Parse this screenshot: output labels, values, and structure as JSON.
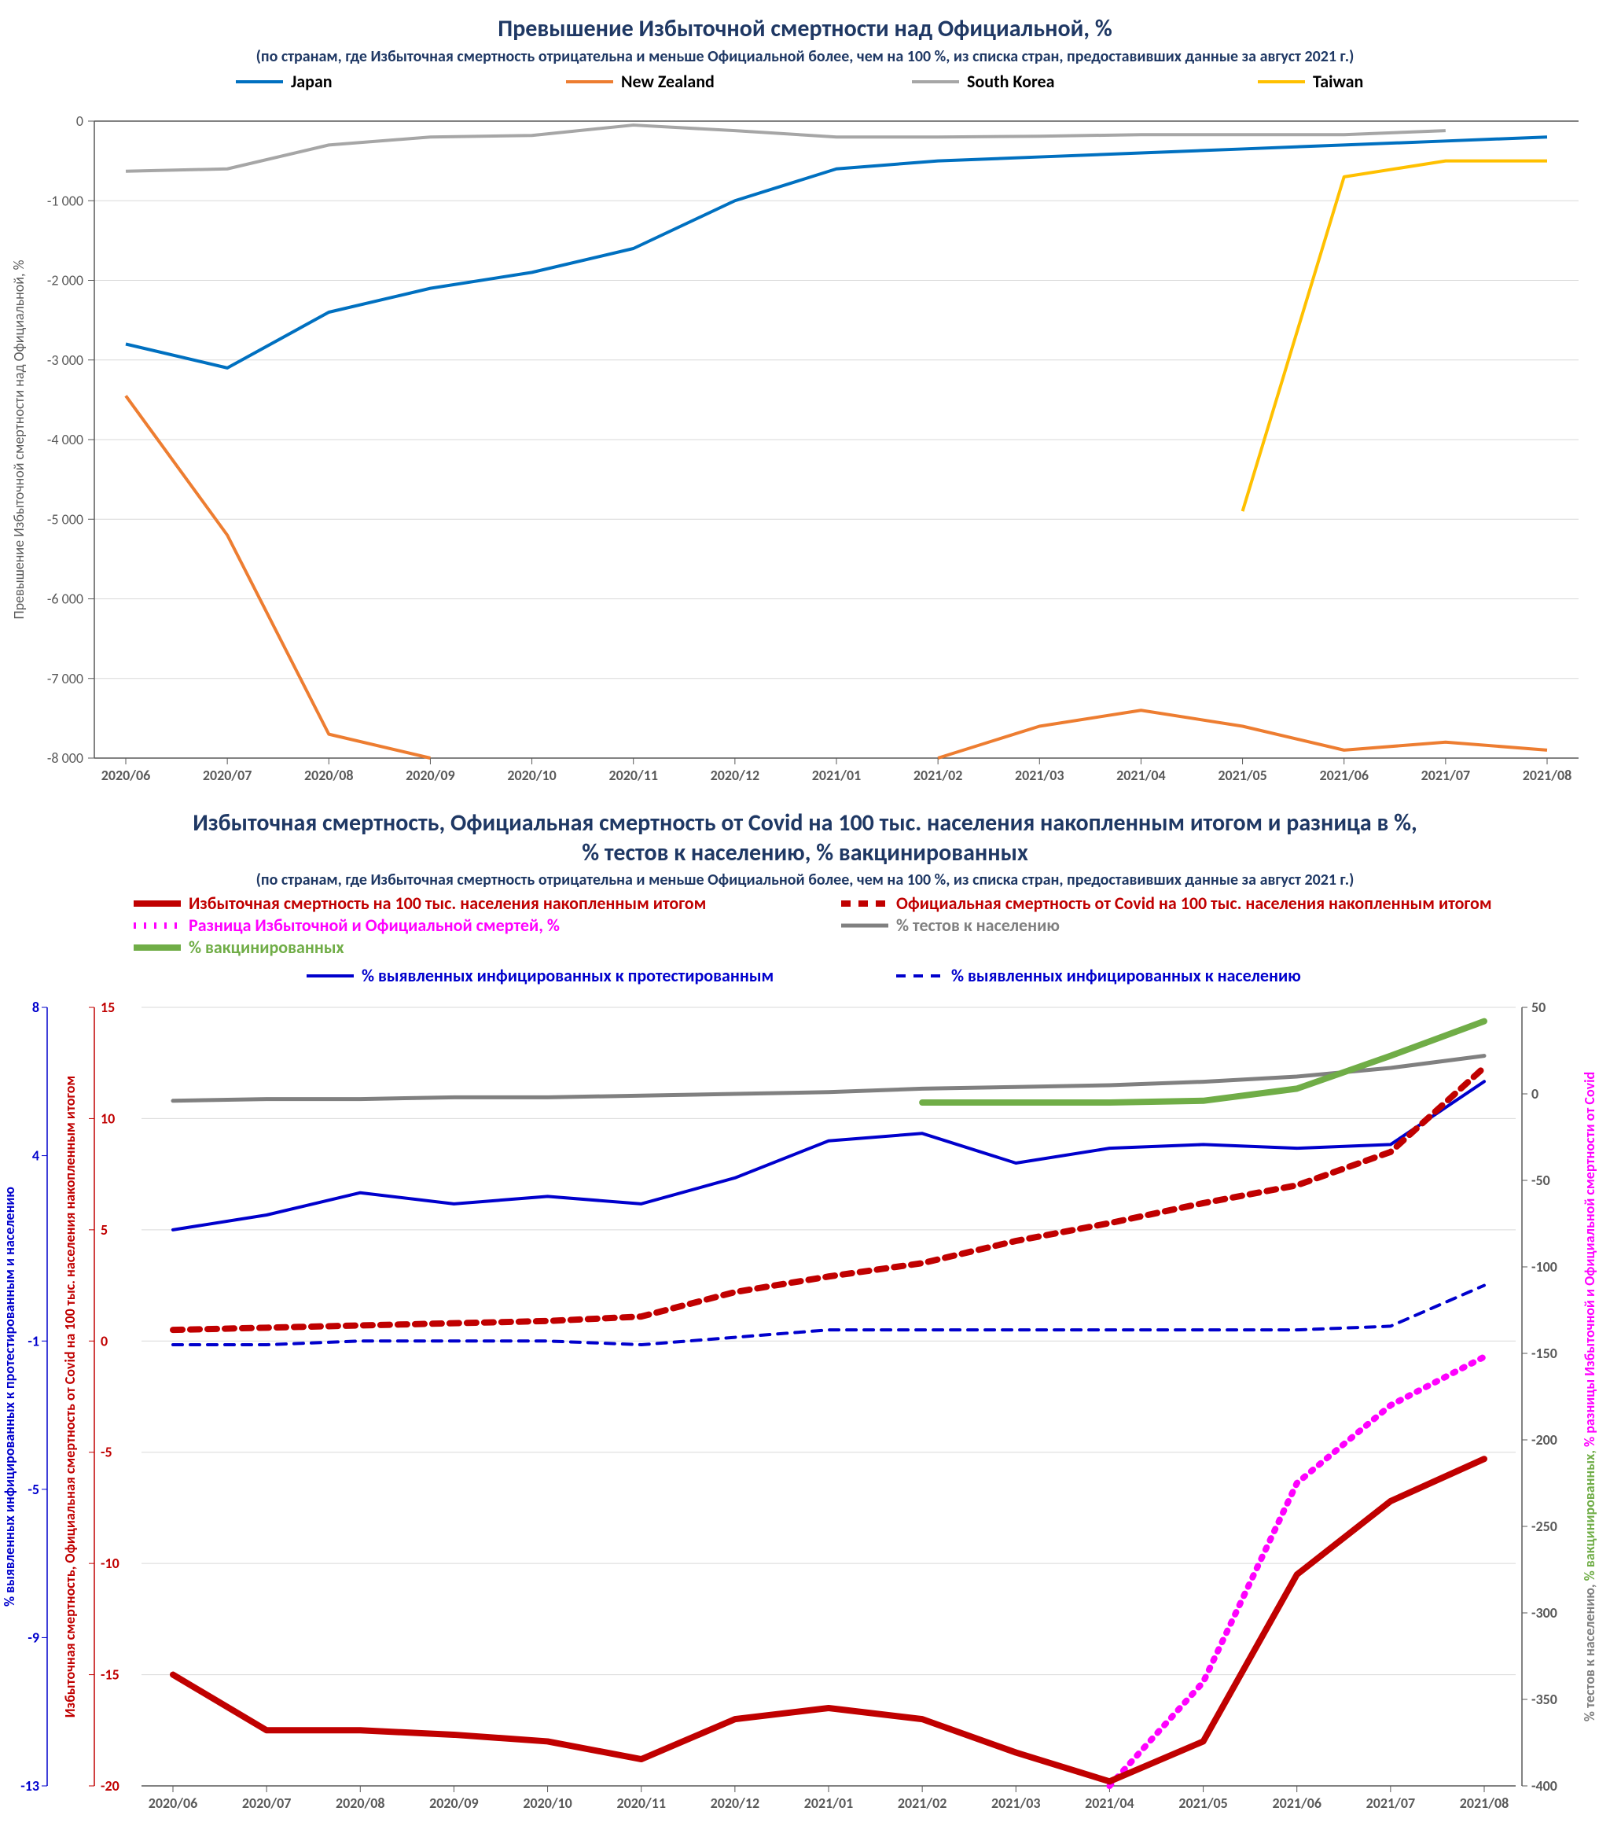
{
  "categories": [
    "2020/06",
    "2020/07",
    "2020/08",
    "2020/09",
    "2020/10",
    "2020/11",
    "2020/12",
    "2021/01",
    "2021/02",
    "2021/03",
    "2021/04",
    "2021/05",
    "2021/06",
    "2021/07",
    "2021/08"
  ],
  "chart1": {
    "title": "Превышение Избыточной смертности над Официальной, %",
    "subtitle": "(по странам, где Избыточная смертность отрицательна и меньше Официальной  более, чем на 100 %, из списка стран, предоставивших данные за август 2021 г.)",
    "title_fontsize": 30,
    "subtitle_fontsize": 20,
    "title_color": "#1f3864",
    "y_axis_title": "Превышение Избыточной смертности над Официальной, %",
    "ylim": [
      -8000,
      0
    ],
    "ytick_step": 1000,
    "grid_color": "#d9d9d9",
    "axis_color": "#595959",
    "background_color": "#ffffff",
    "line_width": 4,
    "legend": [
      {
        "label": "Japan",
        "color": "#0070c0"
      },
      {
        "label": "New Zealand",
        "color": "#ed7d31"
      },
      {
        "label": "South Korea",
        "color": "#a6a6a6"
      },
      {
        "label": "Taiwan",
        "color": "#ffc000"
      }
    ],
    "series": {
      "Japan": [
        -2800,
        -3100,
        -2400,
        -2100,
        -1900,
        -1600,
        -1000,
        -600,
        -500,
        -450,
        -400,
        -350,
        -300,
        -250,
        -200
      ],
      "NewZealand": [
        -3450,
        -5200,
        -7700,
        -8000,
        null,
        null,
        null,
        null,
        -8000,
        -7600,
        -7400,
        -7600,
        -7900,
        -7800,
        -7900
      ],
      "SouthKorea": [
        -630,
        -600,
        -300,
        -200,
        -180,
        -50,
        -120,
        -200,
        -200,
        -190,
        -170,
        -170,
        -170,
        -120,
        null
      ],
      "Taiwan": [
        null,
        null,
        null,
        null,
        null,
        null,
        null,
        null,
        null,
        null,
        null,
        -4900,
        -700,
        -500,
        -500
      ]
    }
  },
  "chart2": {
    "title1": "Избыточная смертность, Официальная смертность от Covid на 100 тыс. населения накопленным итогом и разница в %,",
    "title2": "% тестов к населению, % вакцинированных",
    "subtitle": "(по странам, где Избыточная смертность отрицательна и меньше Официальной  более, чем на 100 %, из списка стран, предоставивших данные за август 2021 г.)",
    "title_fontsize": 30,
    "subtitle_fontsize": 20,
    "title_color": "#1f3864",
    "background_color": "#ffffff",
    "grid_color": "#d9d9d9",
    "line_width_thick": 8,
    "line_width_thin": 4,
    "axisL1": {
      "lim": [
        -13,
        8
      ],
      "ticks": [
        -13,
        -9,
        -5,
        -1,
        4,
        8
      ],
      "color": "#0000cc",
      "title": "% выявленных инфицированных к протестированным и населению"
    },
    "axisL2": {
      "lim": [
        -20,
        15
      ],
      "ticks": [
        -20,
        -15,
        -10,
        -5,
        0,
        5,
        10,
        15
      ],
      "color": "#c00000",
      "title": "Избыточная смертность, Официальная смертность от Covid на 100 тыс. населения накопленным итогом"
    },
    "axisR": {
      "lim": [
        -400,
        50
      ],
      "ticks": [
        -400,
        -350,
        -300,
        -250,
        -200,
        -150,
        -100,
        -50,
        0,
        50
      ],
      "title": "% тестов к населению, % вакцинированных, % разницы Избыточной и Официальной смертности от Covid",
      "colors": {
        "tests": "#808080",
        "vacc": "#70ad47",
        "diff": "#ff00ff"
      }
    },
    "legend_row1": [
      {
        "label": "Избыточная смертность на 100 тыс. населения накопленным итогом",
        "color": "#c00000",
        "dash": "",
        "width": 8
      },
      {
        "label": "Официальная смертность от Covid на 100 тыс. населения накопленным итогом",
        "color": "#c00000",
        "dash": "12,10",
        "width": 8
      },
      {
        "label": "Разница Избыточной и Официальной смертей, %",
        "color": "#ff00ff",
        "dash": "3,10",
        "width": 8
      },
      {
        "label": "% тестов к населению",
        "color": "#808080",
        "dash": "",
        "width": 5
      },
      {
        "label": "% вакцинированных",
        "color": "#70ad47",
        "dash": "",
        "width": 8
      }
    ],
    "legend_row2": [
      {
        "label": "% выявленных инфицированных к протестированным",
        "color": "#0000cc",
        "dash": "",
        "width": 4
      },
      {
        "label": "% выявленных инфицированных к населению",
        "color": "#0000cc",
        "dash": "12,10",
        "width": 4
      }
    ],
    "series": {
      "excess": {
        "axis": "L2",
        "color": "#c00000",
        "dash": "",
        "width": 8,
        "data": [
          -15,
          -17.5,
          -17.5,
          -17.7,
          -18,
          -18.8,
          -17,
          -16.5,
          -17,
          -18.5,
          -19.8,
          -18,
          -10.5,
          -7.2,
          -5.3
        ]
      },
      "official": {
        "axis": "L2",
        "color": "#c00000",
        "dash": "12,10",
        "width": 8,
        "data": [
          0.5,
          0.6,
          0.7,
          0.8,
          0.9,
          1.1,
          2.2,
          2.9,
          3.5,
          4.5,
          5.3,
          6.2,
          7.0,
          8.5,
          12.3
        ]
      },
      "diff": {
        "axis": "R",
        "color": "#ff00ff",
        "dash": "3,10",
        "width": 8,
        "data": [
          null,
          null,
          null,
          null,
          null,
          null,
          null,
          null,
          null,
          null,
          -400,
          -340,
          -225,
          -180,
          -152
        ]
      },
      "tests": {
        "axis": "R",
        "color": "#808080",
        "dash": "",
        "width": 5,
        "data": [
          -4,
          -3,
          -3,
          -2,
          -2,
          -1,
          0,
          1,
          3,
          4,
          5,
          7,
          10,
          15,
          22
        ]
      },
      "vacc": {
        "axis": "R",
        "color": "#70ad47",
        "dash": "",
        "width": 8,
        "data": [
          null,
          null,
          null,
          null,
          null,
          null,
          null,
          null,
          -5,
          -5,
          -5,
          -4,
          3,
          22,
          42
        ]
      },
      "inf_tested": {
        "axis": "L1",
        "color": "#0000cc",
        "dash": "",
        "width": 4,
        "data": [
          2.0,
          2.4,
          3.0,
          2.7,
          2.9,
          2.7,
          3.4,
          4.4,
          4.6,
          3.8,
          4.2,
          4.3,
          4.2,
          4.3,
          6.0
        ]
      },
      "inf_pop": {
        "axis": "L1",
        "color": "#0000cc",
        "dash": "12,10",
        "width": 4,
        "data": [
          -1.1,
          -1.1,
          -1.0,
          -1.0,
          -1.0,
          -1.1,
          -0.9,
          -0.7,
          -0.7,
          -0.7,
          -0.7,
          -0.7,
          -0.7,
          -0.6,
          0.5
        ]
      }
    }
  }
}
